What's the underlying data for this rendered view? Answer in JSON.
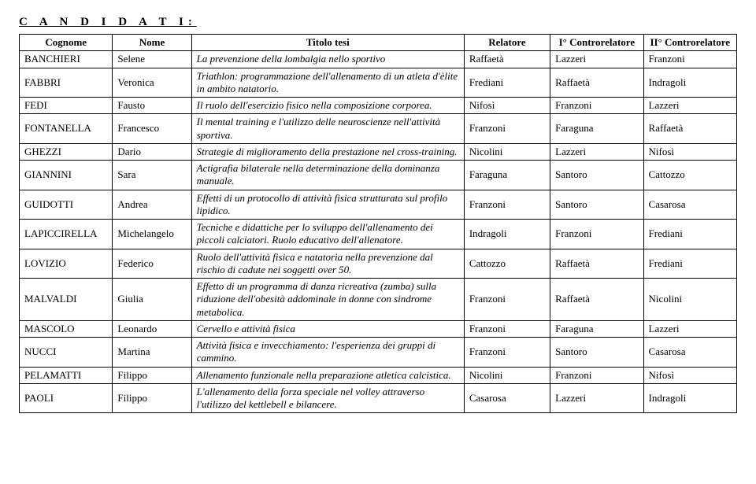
{
  "heading": "C A N D I D A T I:",
  "columns": [
    "Cognome",
    "Nome",
    "Titolo tesi",
    "Relatore",
    "I° Controrelatore",
    "II° Controrelatore"
  ],
  "rows": [
    {
      "cognome": "BANCHIERI",
      "nome": "Selene",
      "tesi": "La prevenzione della lombalgia nello sportivo",
      "relatore": "Raffaetà",
      "c1": "Lazzeri",
      "c2": "Franzoni"
    },
    {
      "cognome": "FABBRI",
      "nome": "Veronica",
      "tesi": "Triathlon: programmazione dell'allenamento di un atleta d'èlite in ambito natatorio.",
      "relatore": "Frediani",
      "c1": "Raffaetà",
      "c2": "Indragoli"
    },
    {
      "cognome": "FEDI",
      "nome": "Fausto",
      "tesi": "Il ruolo dell'esercizio fisico nella composizione corporea.",
      "relatore": "Nifosì",
      "c1": "Franzoni",
      "c2": "Lazzeri"
    },
    {
      "cognome": "FONTANELLA",
      "nome": "Francesco",
      "tesi": "Il mental training e l'utilizzo delle neuroscienze nell'attività sportiva.",
      "relatore": "Franzoni",
      "c1": "Faraguna",
      "c2": "Raffaetà"
    },
    {
      "cognome": "GHEZZI",
      "nome": "Dario",
      "tesi": "Strategie di miglioramento della prestazione nel cross-training.",
      "relatore": "Nicolini",
      "c1": "Lazzeri",
      "c2": "Nifosì"
    },
    {
      "cognome": "GIANNINI",
      "nome": "Sara",
      "tesi": "Actigrafia bilaterale nella determinazione della dominanza manuale.",
      "relatore": "Faraguna",
      "c1": "Santoro",
      "c2": "Cattozzo"
    },
    {
      "cognome": "GUIDOTTI",
      "nome": "Andrea",
      "tesi": "Effetti di un protocollo di attività fisica strutturata sul profilo lipidico.",
      "relatore": "Franzoni",
      "c1": "Santoro",
      "c2": "Casarosa"
    },
    {
      "cognome": "LAPICCIRELLA",
      "nome": "Michelangelo",
      "tesi": "Tecniche e didattiche per lo sviluppo dell'allenamento dei piccoli calciatori. Ruolo educativo dell'allenatore.",
      "relatore": "Indragoli",
      "c1": "Franzoni",
      "c2": "Frediani"
    },
    {
      "cognome": "LOVIZIO",
      "nome": "Federico",
      "tesi": "Ruolo dell'attività fisica e natatoria nella prevenzione dal rischio di cadute nei soggetti over 50.",
      "relatore": "Cattozzo",
      "c1": "Raffaetà",
      "c2": "Frediani"
    },
    {
      "cognome": "MALVALDI",
      "nome": "Giulia",
      "tesi": "Effetto di un programma di danza ricreativa (zumba) sulla riduzione dell'obesità addominale in donne con sindrome metabolica.",
      "relatore": "Franzoni",
      "c1": "Raffaetà",
      "c2": "Nicolini"
    },
    {
      "cognome": "MASCOLO",
      "nome": "Leonardo",
      "tesi": "Cervello e attività fisica",
      "relatore": "Franzoni",
      "c1": "Faraguna",
      "c2": "Lazzeri"
    },
    {
      "cognome": "NUCCI",
      "nome": "Martina",
      "tesi": "Attività fisica e invecchiamento: l'esperienza dei gruppi di cammino.",
      "relatore": "Franzoni",
      "c1": "Santoro",
      "c2": "Casarosa"
    },
    {
      "cognome": "PELAMATTI",
      "nome": "Filippo",
      "tesi": "Allenamento funzionale nella preparazione atletica calcistica.",
      "relatore": "Nicolini",
      "c1": "Franzoni",
      "c2": "Nifosì"
    },
    {
      "cognome": "PAOLI",
      "nome": "Filippo",
      "tesi": "L'allenamento della forza speciale nel volley attraverso l'utilizzo del kettlebell e bilancere.",
      "relatore": "Casarosa",
      "c1": "Lazzeri",
      "c2": "Indragoli"
    }
  ]
}
